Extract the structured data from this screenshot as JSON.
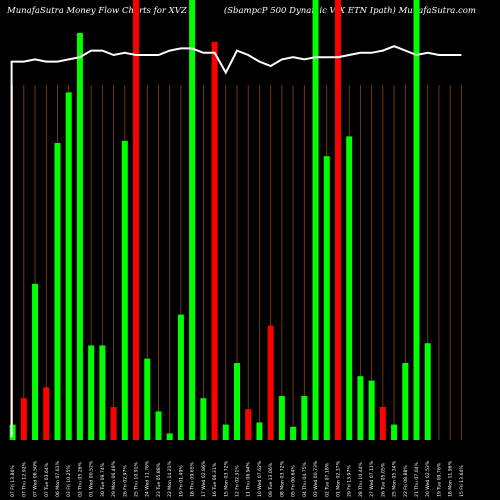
{
  "title_left": "MunafaSutra  Money Flow  Charts for XVZ",
  "title_right": "(SbampcP 500  Dynamic VIX   ETN  Ipath) MunafaSutra.com",
  "colors": {
    "background": "#000000",
    "gridline": "#8b4513",
    "up_bar": "#00ff00",
    "down_bar": "#ff0000",
    "flow_line": "#ffffff"
  },
  "chart_data": {
    "type": "bar",
    "title": "MunafaSutra  Money Flow  Charts for XVZ",
    "subtitle": "(SbampcP 500  Dynamic VIX   ETN  Ipath) MunafaSutra.com",
    "ylim": [
      0,
      100
    ],
    "grid": true,
    "categories": [
      "07 Fri 13.86%",
      "07 Thu 12.92%",
      "07 Wed 08.50%",
      "07 Tue 03.64%",
      "06 Mon 07.61%",
      "03 Fri 10.25%",
      "02 Thu 05.26%",
      "01 Wed 00.52%",
      "30 Tue 09.74%",
      "29 Mon 06.49%",
      "26 Fri 02.97%",
      "25 Thu 10.91%",
      "24 Wed 11.76%",
      "23 Tue 05.88%",
      "22 Mon 14.21%",
      "19 Fri 01.49%",
      "18 Thu 09.65%",
      "17 Wed 02.86%",
      "16 Tue 06.31%",
      "15 Mon 03.72%",
      "12 Fri 02.31%",
      "11 Thu 06.94%",
      "10 Wed 07.62%",
      "09 Tue 13.06%",
      "08 Mon 03.72%",
      "05 Fri 06.64%",
      "04 Thu 04.75%",
      "03 Wed 00.73%",
      "02 Tue 07.18%",
      "01 Mon 02.37%",
      "29 Fri 13.97%",
      "28 Thu 10.44%",
      "27 Wed 07.11%",
      "26 Tue 05.05%",
      "25 Mon 05.34%",
      "22 Fri 08.88%",
      "21 Thu 07.04%",
      "20 Wed 02.52%",
      "19 Tue 09.76%",
      "18 Mon 11.96%",
      "15 Fri 13.64%"
    ],
    "series": [
      {
        "values": [
          3.5,
          9.5,
          35.5,
          12.0,
          67.5,
          79.0,
          92.5,
          21.5,
          21.5,
          7.5,
          68.0,
          100.0,
          18.5,
          6.5,
          1.5,
          28.5,
          100.0,
          9.5,
          90.5,
          3.5,
          17.5,
          7.0,
          4.0,
          26.0,
          10.0,
          3.0,
          10.0,
          100.0,
          64.5,
          100.0,
          69.0,
          14.5,
          13.5,
          7.5,
          3.5,
          17.5,
          100.0,
          22.0,
          0,
          0,
          0
        ]
      },
      {
        "values": [
          86,
          86,
          86.5,
          86,
          86,
          86.5,
          87,
          88.5,
          88.5,
          87.5,
          88,
          87.5,
          87.5,
          87.5,
          88.5,
          89,
          89,
          88,
          88,
          83.5,
          88.5,
          87.5,
          86,
          85,
          86.5,
          87,
          86.5,
          87,
          87,
          87,
          87.5,
          88,
          88,
          88.5,
          89.5,
          88.5,
          87.5,
          88,
          87.5,
          87.5,
          87.5
        ]
      }
    ],
    "bar_colors": [
      "up",
      "down",
      "up",
      "down",
      "up",
      "up",
      "up",
      "up",
      "up",
      "down",
      "up",
      "down",
      "up",
      "up",
      "up",
      "up",
      "up",
      "up",
      "down",
      "up",
      "up",
      "down",
      "up",
      "down",
      "up",
      "up",
      "up",
      "up",
      "up",
      "down",
      "up",
      "up",
      "up",
      "down",
      "up",
      "up",
      "up",
      "up",
      "up",
      "down",
      "up"
    ]
  }
}
